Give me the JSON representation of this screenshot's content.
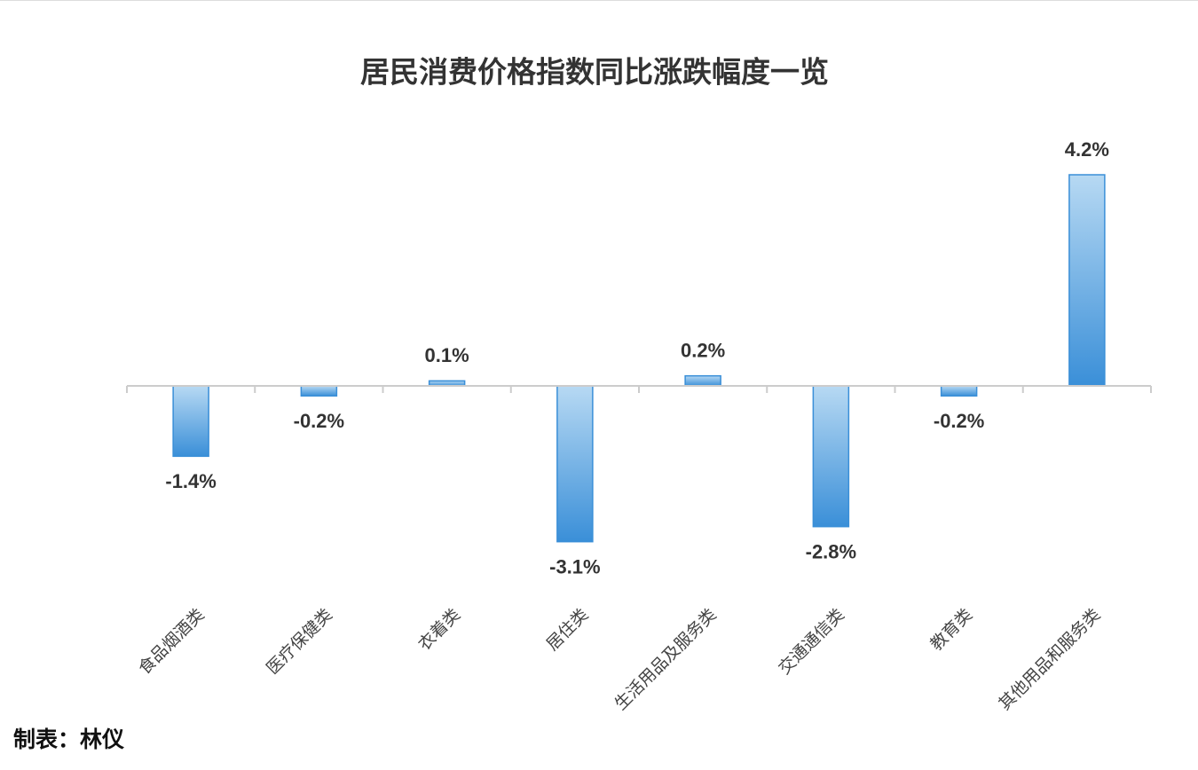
{
  "chart_data": {
    "type": "bar",
    "title": "居民消费价格指数同比涨跌幅度一览",
    "categories": [
      "食品烟酒类",
      "医疗保健类",
      "衣着类",
      "居住类",
      "生活用品及服务类",
      "交通通信类",
      "教育类",
      "其他用品和服务类"
    ],
    "values": [
      -1.4,
      -0.2,
      0.1,
      -3.1,
      0.2,
      -2.8,
      -0.2,
      4.2
    ],
    "value_labels": [
      "-1.4%",
      "-0.2%",
      "0.1%",
      "-3.1%",
      "0.2%",
      "-2.8%",
      "-0.2%",
      "4.2%"
    ],
    "color": "#3a8fd8",
    "source": "制表：林仪"
  }
}
